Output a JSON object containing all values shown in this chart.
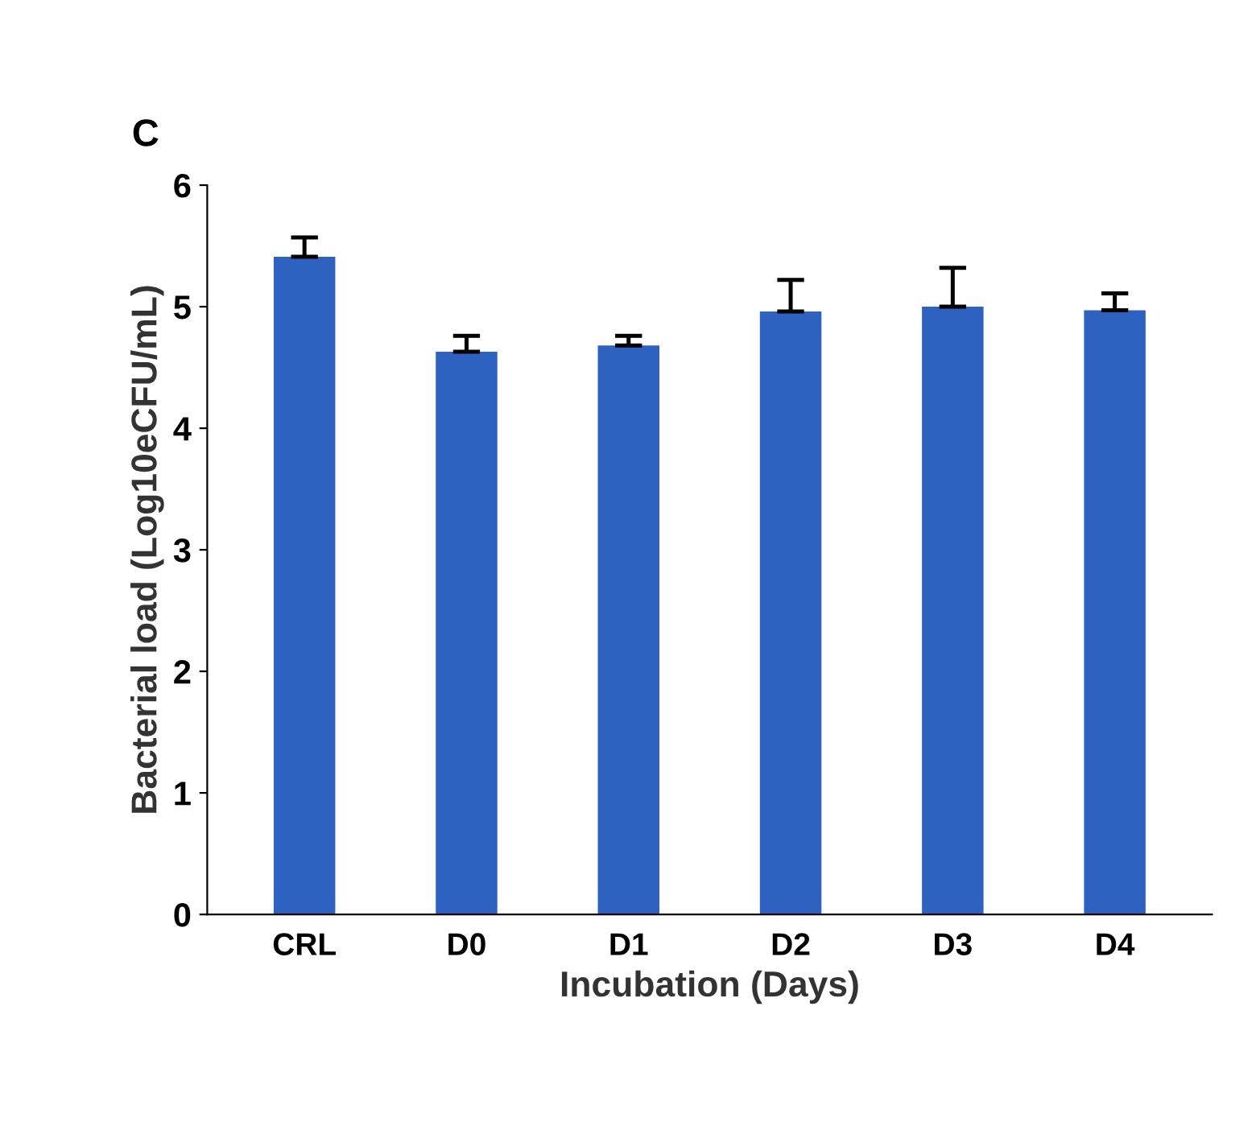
{
  "chart_data": {
    "type": "bar",
    "title": "C",
    "xlabel": "Incubation (Days)",
    "ylabel": "Bacterial load (Log10eCFU/mL)",
    "categories": [
      "CRL",
      "D0",
      "D1",
      "D2",
      "D3",
      "D4"
    ],
    "values": [
      5.41,
      4.63,
      4.68,
      4.96,
      5.0,
      4.97
    ],
    "errors": [
      [
        5.41,
        5.57
      ],
      [
        4.63,
        4.76
      ],
      [
        4.68,
        4.76
      ],
      [
        4.96,
        5.22
      ],
      [
        5.0,
        5.32
      ],
      [
        4.97,
        5.11
      ]
    ],
    "color": "#2e62c0",
    "ylim": [
      0,
      6
    ],
    "yticks": [
      0,
      1,
      2,
      3,
      4,
      5,
      6
    ],
    "grid": false
  }
}
